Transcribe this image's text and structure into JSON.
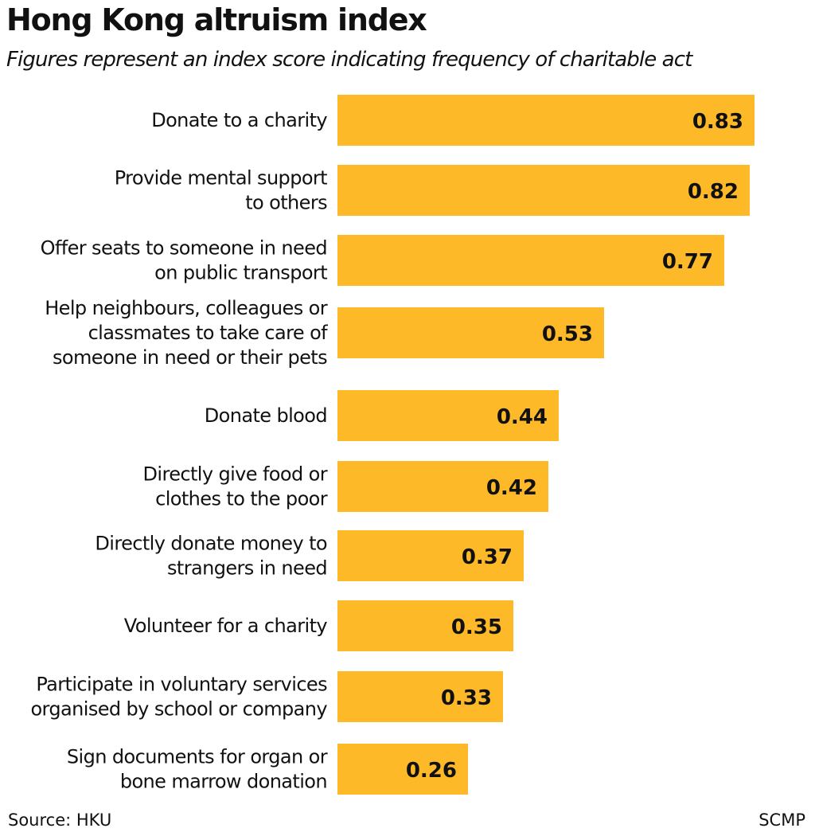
{
  "title": "Hong Kong altruism index",
  "subtitle": "Figures represent an index score indicating frequency of charitable act",
  "footer": {
    "source": "Source: HKU",
    "credit": "SCMP"
  },
  "colors": {
    "bar": "#FDB927",
    "text": "#111111"
  },
  "chart_data": {
    "type": "bar",
    "orientation": "horizontal",
    "title": "Hong Kong altruism index",
    "subtitle": "Figures represent an index score indicating frequency of charitable act",
    "xlabel": "",
    "ylabel": "",
    "xlim": [
      0,
      0.83
    ],
    "grid": false,
    "legend": "none",
    "categories": [
      [
        "Donate to a charity"
      ],
      [
        "Provide mental support",
        "to others"
      ],
      [
        "Offer seats to someone in need",
        "on public transport"
      ],
      [
        "Help neighbours, colleagues or",
        "classmates to take care of",
        "someone in need or their pets"
      ],
      [
        "Donate blood"
      ],
      [
        "Directly give food or",
        "clothes to the poor"
      ],
      [
        "Directly donate money to",
        "strangers in need"
      ],
      [
        "Volunteer for a charity"
      ],
      [
        "Participate in voluntary services",
        "organised by school or company"
      ],
      [
        "Sign documents for organ or",
        "bone marrow donation"
      ]
    ],
    "values": [
      0.83,
      0.82,
      0.77,
      0.53,
      0.44,
      0.42,
      0.37,
      0.35,
      0.33,
      0.26
    ],
    "value_labels": [
      "0.83",
      "0.82",
      "0.77",
      "0.53",
      "0.44",
      "0.42",
      "0.37",
      "0.35",
      "0.33",
      "0.26"
    ]
  }
}
